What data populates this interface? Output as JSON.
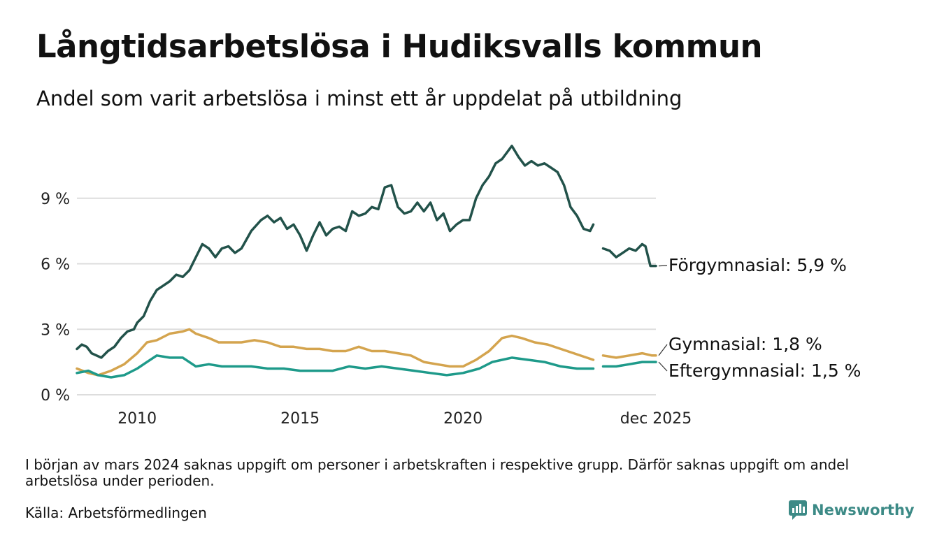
{
  "title": "Långtidsarbetslösa i Hudiksvalls kommun",
  "subtitle": "Andel som varit arbetslösa i minst ett år uppdelat på utbildning",
  "footnote": "I början av mars 2024 saknas uppgift om personer i arbetskraften i respektive grupp. Därför saknas uppgift om andel arbetslösa under perioden.",
  "source": "Källa: Arbetsförmedlingen",
  "brand": "Newsworthy",
  "colors": {
    "forgymnasial": "#22524a",
    "gymnasial": "#d4a44e",
    "eftergymnasial": "#1e9a8a",
    "grid": "#dddddd",
    "brand": "#3c8a86"
  },
  "chart_data": {
    "type": "line",
    "title": "Långtidsarbetslösa i Hudiksvalls kommun",
    "xlabel": "",
    "ylabel": "",
    "xlim": [
      2008.15,
      2025.92
    ],
    "ylim": [
      0,
      12
    ],
    "yticks": [
      {
        "value": 0,
        "label": "0 %"
      },
      {
        "value": 3,
        "label": "3 %"
      },
      {
        "value": 6,
        "label": "6 %"
      },
      {
        "value": 9,
        "label": "9 %"
      }
    ],
    "xticks": [
      {
        "value": 2010,
        "label": "2010"
      },
      {
        "value": 2015,
        "label": "2015"
      },
      {
        "value": 2020,
        "label": "2020"
      },
      {
        "value": 2025.92,
        "label": "dec 2025"
      }
    ],
    "grid": true,
    "gap": {
      "from": 2024.0,
      "to": 2024.3,
      "note": "data missing from March 2024"
    },
    "series": [
      {
        "name": "Förgymnasial",
        "label": "Förgymnasial: 5,9 %",
        "color": "#22524a",
        "points": [
          [
            2008.15,
            2.1
          ],
          [
            2008.3,
            2.3
          ],
          [
            2008.45,
            2.2
          ],
          [
            2008.6,
            1.9
          ],
          [
            2008.9,
            1.7
          ],
          [
            2009.1,
            2.0
          ],
          [
            2009.3,
            2.2
          ],
          [
            2009.5,
            2.6
          ],
          [
            2009.7,
            2.9
          ],
          [
            2009.9,
            3.0
          ],
          [
            2010.0,
            3.3
          ],
          [
            2010.2,
            3.6
          ],
          [
            2010.4,
            4.3
          ],
          [
            2010.6,
            4.8
          ],
          [
            2010.8,
            5.0
          ],
          [
            2011.0,
            5.2
          ],
          [
            2011.2,
            5.5
          ],
          [
            2011.4,
            5.4
          ],
          [
            2011.6,
            5.7
          ],
          [
            2011.8,
            6.3
          ],
          [
            2012.0,
            6.9
          ],
          [
            2012.2,
            6.7
          ],
          [
            2012.4,
            6.3
          ],
          [
            2012.6,
            6.7
          ],
          [
            2012.8,
            6.8
          ],
          [
            2013.0,
            6.5
          ],
          [
            2013.2,
            6.7
          ],
          [
            2013.5,
            7.5
          ],
          [
            2013.8,
            8.0
          ],
          [
            2014.0,
            8.2
          ],
          [
            2014.2,
            7.9
          ],
          [
            2014.4,
            8.1
          ],
          [
            2014.6,
            7.6
          ],
          [
            2014.8,
            7.8
          ],
          [
            2015.0,
            7.3
          ],
          [
            2015.2,
            6.6
          ],
          [
            2015.4,
            7.3
          ],
          [
            2015.6,
            7.9
          ],
          [
            2015.8,
            7.3
          ],
          [
            2016.0,
            7.6
          ],
          [
            2016.2,
            7.7
          ],
          [
            2016.4,
            7.5
          ],
          [
            2016.6,
            8.4
          ],
          [
            2016.8,
            8.2
          ],
          [
            2017.0,
            8.3
          ],
          [
            2017.2,
            8.6
          ],
          [
            2017.4,
            8.5
          ],
          [
            2017.6,
            9.5
          ],
          [
            2017.8,
            9.6
          ],
          [
            2018.0,
            8.6
          ],
          [
            2018.2,
            8.3
          ],
          [
            2018.4,
            8.4
          ],
          [
            2018.6,
            8.8
          ],
          [
            2018.8,
            8.4
          ],
          [
            2019.0,
            8.8
          ],
          [
            2019.2,
            8.0
          ],
          [
            2019.4,
            8.3
          ],
          [
            2019.6,
            7.5
          ],
          [
            2019.8,
            7.8
          ],
          [
            2020.0,
            8.0
          ],
          [
            2020.2,
            8.0
          ],
          [
            2020.4,
            9.0
          ],
          [
            2020.6,
            9.6
          ],
          [
            2020.8,
            10.0
          ],
          [
            2021.0,
            10.6
          ],
          [
            2021.2,
            10.8
          ],
          [
            2021.4,
            11.2
          ],
          [
            2021.5,
            11.4
          ],
          [
            2021.7,
            10.9
          ],
          [
            2021.9,
            10.5
          ],
          [
            2022.1,
            10.7
          ],
          [
            2022.3,
            10.5
          ],
          [
            2022.5,
            10.6
          ],
          [
            2022.7,
            10.4
          ],
          [
            2022.9,
            10.2
          ],
          [
            2023.1,
            9.6
          ],
          [
            2023.3,
            8.6
          ],
          [
            2023.5,
            8.2
          ],
          [
            2023.7,
            7.6
          ],
          [
            2023.9,
            7.5
          ],
          [
            2024.0,
            7.8
          ],
          [
            2024.3,
            6.7
          ],
          [
            2024.5,
            6.6
          ],
          [
            2024.7,
            6.3
          ],
          [
            2024.9,
            6.5
          ],
          [
            2025.1,
            6.7
          ],
          [
            2025.3,
            6.6
          ],
          [
            2025.5,
            6.9
          ],
          [
            2025.6,
            6.8
          ],
          [
            2025.75,
            5.9
          ],
          [
            2025.92,
            5.9
          ]
        ]
      },
      {
        "name": "Gymnasial",
        "label": "Gymnasial: 1,8 %",
        "color": "#d4a44e",
        "points": [
          [
            2008.15,
            1.2
          ],
          [
            2008.5,
            1.0
          ],
          [
            2008.8,
            0.9
          ],
          [
            2009.2,
            1.1
          ],
          [
            2009.6,
            1.4
          ],
          [
            2010.0,
            1.9
          ],
          [
            2010.3,
            2.4
          ],
          [
            2010.6,
            2.5
          ],
          [
            2011.0,
            2.8
          ],
          [
            2011.4,
            2.9
          ],
          [
            2011.6,
            3.0
          ],
          [
            2011.8,
            2.8
          ],
          [
            2012.2,
            2.6
          ],
          [
            2012.5,
            2.4
          ],
          [
            2012.8,
            2.4
          ],
          [
            2013.2,
            2.4
          ],
          [
            2013.6,
            2.5
          ],
          [
            2014.0,
            2.4
          ],
          [
            2014.4,
            2.2
          ],
          [
            2014.8,
            2.2
          ],
          [
            2015.2,
            2.1
          ],
          [
            2015.6,
            2.1
          ],
          [
            2016.0,
            2.0
          ],
          [
            2016.4,
            2.0
          ],
          [
            2016.8,
            2.2
          ],
          [
            2017.2,
            2.0
          ],
          [
            2017.6,
            2.0
          ],
          [
            2018.0,
            1.9
          ],
          [
            2018.4,
            1.8
          ],
          [
            2018.8,
            1.5
          ],
          [
            2019.2,
            1.4
          ],
          [
            2019.6,
            1.3
          ],
          [
            2020.0,
            1.3
          ],
          [
            2020.4,
            1.6
          ],
          [
            2020.8,
            2.0
          ],
          [
            2021.2,
            2.6
          ],
          [
            2021.5,
            2.7
          ],
          [
            2021.8,
            2.6
          ],
          [
            2022.2,
            2.4
          ],
          [
            2022.6,
            2.3
          ],
          [
            2023.0,
            2.1
          ],
          [
            2023.4,
            1.9
          ],
          [
            2023.8,
            1.7
          ],
          [
            2024.0,
            1.6
          ],
          [
            2024.3,
            1.8
          ],
          [
            2024.7,
            1.7
          ],
          [
            2025.1,
            1.8
          ],
          [
            2025.5,
            1.9
          ],
          [
            2025.8,
            1.8
          ],
          [
            2025.92,
            1.8
          ]
        ]
      },
      {
        "name": "Eftergymnasial",
        "label": "Eftergymnasial: 1,5 %",
        "color": "#1e9a8a",
        "points": [
          [
            2008.15,
            1.0
          ],
          [
            2008.5,
            1.1
          ],
          [
            2008.8,
            0.9
          ],
          [
            2009.2,
            0.8
          ],
          [
            2009.6,
            0.9
          ],
          [
            2010.0,
            1.2
          ],
          [
            2010.3,
            1.5
          ],
          [
            2010.6,
            1.8
          ],
          [
            2011.0,
            1.7
          ],
          [
            2011.4,
            1.7
          ],
          [
            2011.8,
            1.3
          ],
          [
            2012.2,
            1.4
          ],
          [
            2012.6,
            1.3
          ],
          [
            2013.0,
            1.3
          ],
          [
            2013.5,
            1.3
          ],
          [
            2014.0,
            1.2
          ],
          [
            2014.5,
            1.2
          ],
          [
            2015.0,
            1.1
          ],
          [
            2015.5,
            1.1
          ],
          [
            2016.0,
            1.1
          ],
          [
            2016.5,
            1.3
          ],
          [
            2017.0,
            1.2
          ],
          [
            2017.5,
            1.3
          ],
          [
            2018.0,
            1.2
          ],
          [
            2018.5,
            1.1
          ],
          [
            2019.0,
            1.0
          ],
          [
            2019.5,
            0.9
          ],
          [
            2020.0,
            1.0
          ],
          [
            2020.5,
            1.2
          ],
          [
            2020.9,
            1.5
          ],
          [
            2021.2,
            1.6
          ],
          [
            2021.5,
            1.7
          ],
          [
            2022.0,
            1.6
          ],
          [
            2022.5,
            1.5
          ],
          [
            2023.0,
            1.3
          ],
          [
            2023.5,
            1.2
          ],
          [
            2024.0,
            1.2
          ],
          [
            2024.3,
            1.3
          ],
          [
            2024.7,
            1.3
          ],
          [
            2025.1,
            1.4
          ],
          [
            2025.5,
            1.5
          ],
          [
            2025.92,
            1.5
          ]
        ]
      }
    ]
  }
}
